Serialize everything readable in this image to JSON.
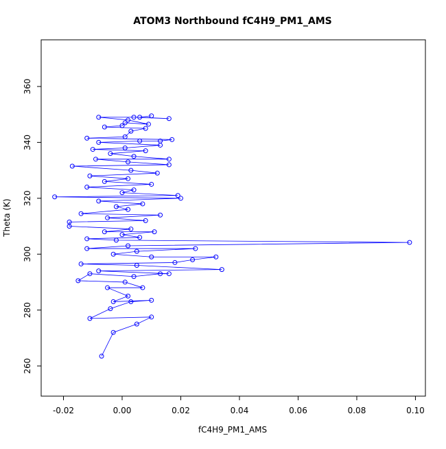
{
  "chart_data": {
    "type": "line",
    "markers": true,
    "title": "ATOM3 Northbound fC4H9_PM1_AMS",
    "x_label": "fC4H9_PM1_AMS",
    "y_label": "Theta (K)",
    "color": "#0000ff",
    "xlim": [
      -0.0276,
      0.1034
    ],
    "ylim": [
      249.2,
      376.7
    ],
    "xticks": [
      -0.02,
      {
        "value": 0,
        "label": "0.00"
      },
      0.02,
      0.04,
      0.06,
      0.08,
      {
        "value": 0.1,
        "label": "0.10"
      }
    ],
    "yticks": [
      260,
      280,
      300,
      320,
      340,
      360
    ],
    "x": [
      -0.007,
      -0.003,
      0.005,
      0.01,
      -0.011,
      -0.004,
      0.003,
      0.01,
      -0.003,
      0.002,
      -0.005,
      0.007,
      0.001,
      -0.015,
      -0.011,
      0.004,
      0.013,
      0.016,
      -0.008,
      0.034,
      0.005,
      -0.014,
      0.018,
      0.024,
      0.032,
      0.01,
      -0.003,
      0.005,
      0.025,
      -0.012,
      0.002,
      0.098,
      -0.002,
      -0.012,
      0.006,
      0.0,
      0.011,
      -0.006,
      0.003,
      -0.018,
      -0.018,
      0.008,
      -0.005,
      0.013,
      -0.014,
      0.002,
      -0.002,
      0.007,
      -0.008,
      0.02,
      -0.023,
      0.019,
      0.0,
      0.004,
      -0.012,
      0.01,
      -0.006,
      0.002,
      -0.011,
      0.012,
      0.003,
      -0.017,
      0.016,
      0.002,
      -0.009,
      0.016,
      0.004,
      -0.004,
      0.008,
      -0.01,
      0.001,
      0.013,
      -0.008,
      0.006,
      0.013,
      0.017,
      -0.012,
      0.001,
      0.003,
      0.008,
      -0.006,
      0.0,
      0.001,
      0.009,
      0.002,
      -0.008,
      0.004,
      0.016,
      0.006,
      0.01
    ],
    "y": [
      263.5,
      272,
      275,
      277.5,
      277,
      280.5,
      283,
      283.5,
      283,
      285,
      288,
      288,
      290,
      290.5,
      293,
      292,
      293,
      293,
      294,
      294.5,
      296,
      296.5,
      297,
      298,
      299,
      299,
      300,
      301,
      302,
      302,
      303,
      304.2,
      305,
      305.5,
      306,
      307,
      308,
      308,
      309,
      310,
      311.5,
      312,
      313,
      314,
      314.5,
      316,
      317,
      318,
      319,
      320,
      320.5,
      321,
      322,
      323,
      324,
      325,
      326,
      327,
      328,
      329,
      330,
      331.5,
      332,
      333,
      334,
      334,
      335,
      336,
      337,
      337.5,
      338,
      339,
      340,
      340.5,
      340.5,
      341,
      341.5,
      342,
      344,
      345,
      345.5,
      346,
      347,
      346.5,
      348,
      349,
      349,
      348.5,
      349,
      349.5
    ]
  }
}
